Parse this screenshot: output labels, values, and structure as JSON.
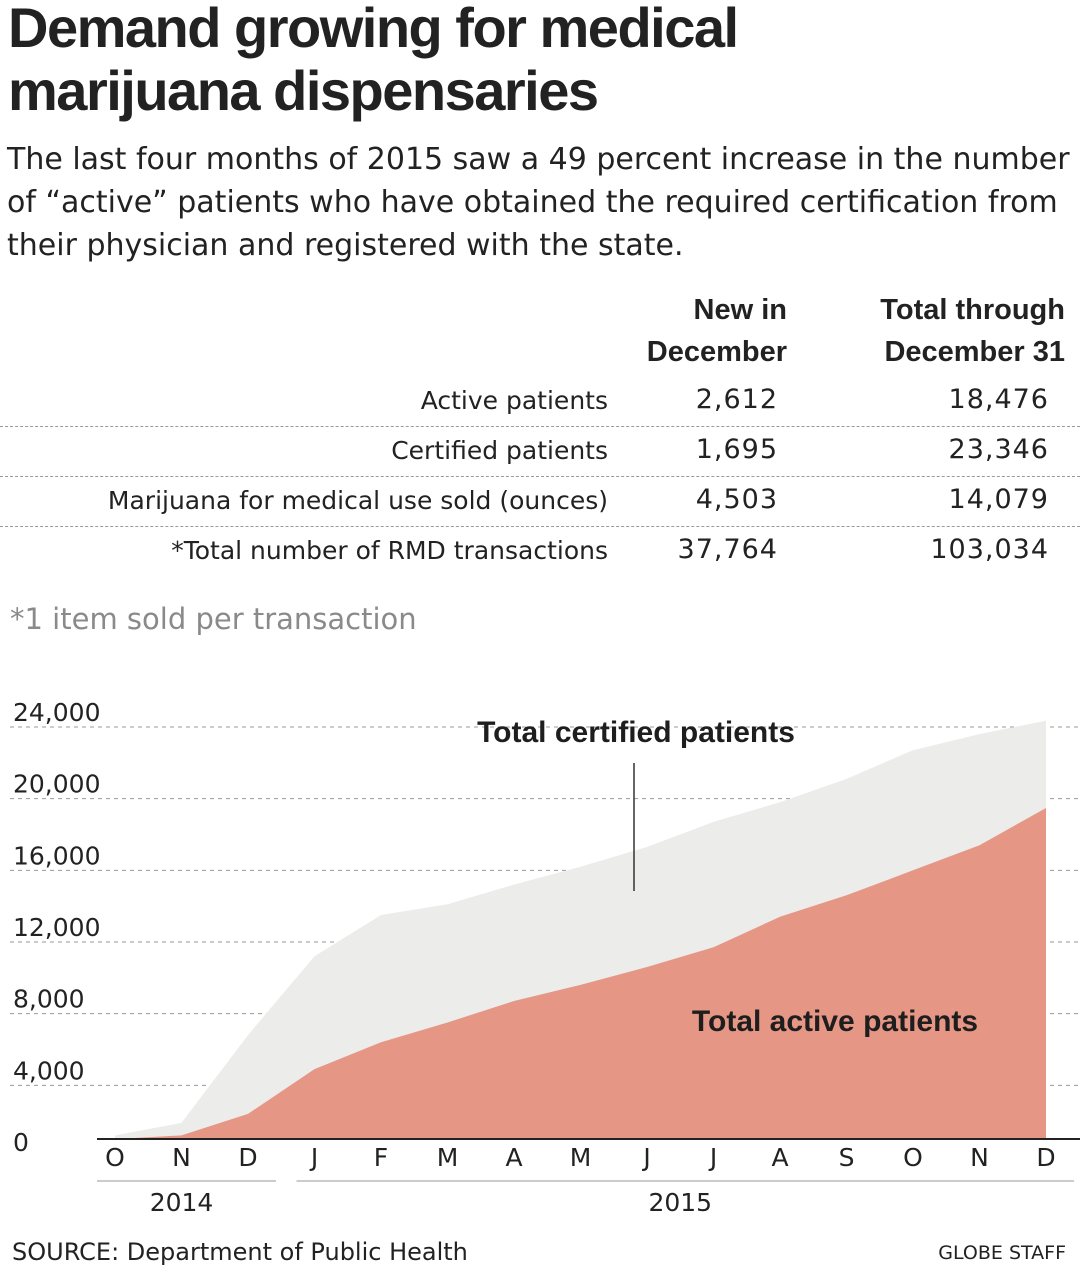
{
  "headline": {
    "line1": "Demand growing for medical",
    "line2": "marijuana dispensaries"
  },
  "dek": "The last four months of 2015 saw a 49 percent increase in the number of “active” patients who have obtained the required certification from their physician and registered with the state.",
  "table": {
    "col1_header_line1": "New in",
    "col1_header_line2": "December",
    "col2_header_line1": "Total through",
    "col2_header_line2": "December 31",
    "rows": [
      {
        "label": "Active patients",
        "new": "2,612",
        "total": "18,476"
      },
      {
        "label": "Certified patients",
        "new": "1,695",
        "total": "23,346"
      },
      {
        "label": "Marijuana for medical use sold (ounces)",
        "new": "4,503",
        "total": "14,079"
      },
      {
        "label": "*Total number of RMD transactions",
        "new": "37,764",
        "total": "103,034"
      }
    ]
  },
  "footnote": "*1 item sold per transaction",
  "chart_data": {
    "type": "area",
    "categories": [
      "O",
      "N",
      "D",
      "J",
      "F",
      "M",
      "A",
      "M",
      "J",
      "J",
      "A",
      "S",
      "O",
      "N",
      "D"
    ],
    "year_labels": [
      {
        "label": "2014",
        "from": 0,
        "to": 2
      },
      {
        "label": "2015",
        "from": 3,
        "to": 14
      }
    ],
    "ylim": [
      0,
      24000
    ],
    "yticks": [
      0,
      4000,
      8000,
      12000,
      16000,
      20000,
      24000
    ],
    "ytick_labels": [
      "0",
      "4,000",
      "8,000",
      "12,000",
      "16,000",
      "20,000",
      "24,000"
    ],
    "grid": true,
    "series": [
      {
        "name": "Total certified patients",
        "color": "#ececea",
        "values": [
          200,
          900,
          5800,
          10200,
          12500,
          13100,
          14200,
          15200,
          16300,
          17700,
          18800,
          20100,
          21700,
          22600,
          23346
        ]
      },
      {
        "name": "Total active patients",
        "color": "#e69684",
        "values": [
          0,
          200,
          1400,
          3900,
          5400,
          6500,
          7700,
          8600,
          9600,
          10700,
          12400,
          13600,
          15000,
          16400,
          18476
        ]
      }
    ]
  },
  "source": "SOURCE: Department of Public Health",
  "credit": "GLOBE STAFF"
}
